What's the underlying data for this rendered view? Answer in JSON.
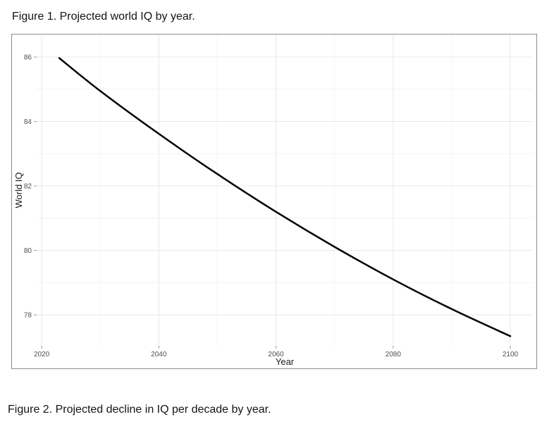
{
  "page": {
    "background": "#ffffff"
  },
  "figure1": {
    "title": "Figure 1. Projected world IQ by year."
  },
  "figure2": {
    "title": "Figure 2. Projected decline in IQ per decade by year."
  },
  "chart_data": {
    "type": "line",
    "title": "",
    "xlabel": "Year",
    "ylabel": "World IQ",
    "x": [
      2023,
      2030,
      2040,
      2050,
      2060,
      2070,
      2080,
      2090,
      2100
    ],
    "y": [
      85.97,
      84.95,
      83.62,
      82.37,
      81.2,
      80.11,
      79.1,
      78.18,
      77.34
    ],
    "x_ticks": [
      2020,
      2040,
      2060,
      2080,
      2100
    ],
    "x_minor_ticks": [
      2030,
      2050,
      2070,
      2090
    ],
    "y_ticks": [
      78,
      80,
      82,
      84,
      86
    ],
    "y_minor_ticks": [
      77,
      79,
      81,
      83,
      85
    ],
    "xlim": [
      2019.15,
      2103.85
    ],
    "ylim": [
      77.04,
      86.7
    ],
    "grid": true,
    "legend": "none",
    "line_color": "#000000",
    "line_width": 2.5,
    "major_grid_color": "#e8e8e8",
    "minor_grid_color": "#f4f4f4",
    "tick_color": "#9a9a9a",
    "tick_label_color": "#4d4d4d",
    "axis_title_color": "#1a1a1a",
    "frame_border_color": "#8c8c8c"
  }
}
